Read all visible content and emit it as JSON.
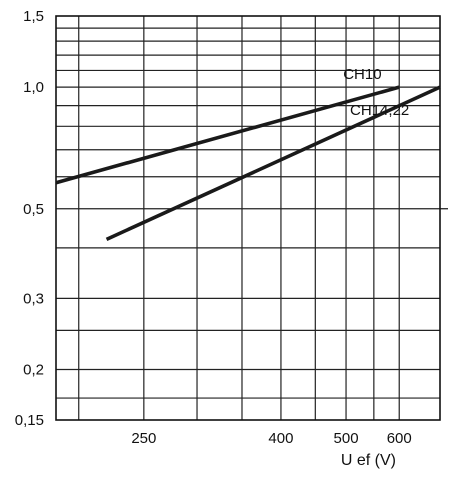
{
  "chart_data": {
    "type": "line",
    "title": "",
    "xlabel": "U ef (V)",
    "ylabel": "",
    "x_scale": "log",
    "y_scale": "log",
    "xlim": [
      185,
      690
    ],
    "ylim": [
      0.15,
      1.5
    ],
    "grid": true,
    "x_ticks": [
      {
        "value": 250,
        "label": "250"
      },
      {
        "value": 400,
        "label": "400"
      },
      {
        "value": 500,
        "label": "500"
      },
      {
        "value": 600,
        "label": "600"
      }
    ],
    "y_ticks": [
      {
        "value": 1.5,
        "label": "1,5"
      },
      {
        "value": 1.0,
        "label": "1,0"
      },
      {
        "value": 0.5,
        "label": "0,5"
      },
      {
        "value": 0.3,
        "label": "0,3"
      },
      {
        "value": 0.2,
        "label": "0,2"
      },
      {
        "value": 0.15,
        "label": "0,15"
      }
    ],
    "series": [
      {
        "name": "CH10",
        "x": [
          185,
          600
        ],
        "y": [
          0.58,
          1.0
        ]
      },
      {
        "name": "CH14,22",
        "x": [
          220,
          690
        ],
        "y": [
          0.42,
          1.0
        ]
      }
    ]
  }
}
